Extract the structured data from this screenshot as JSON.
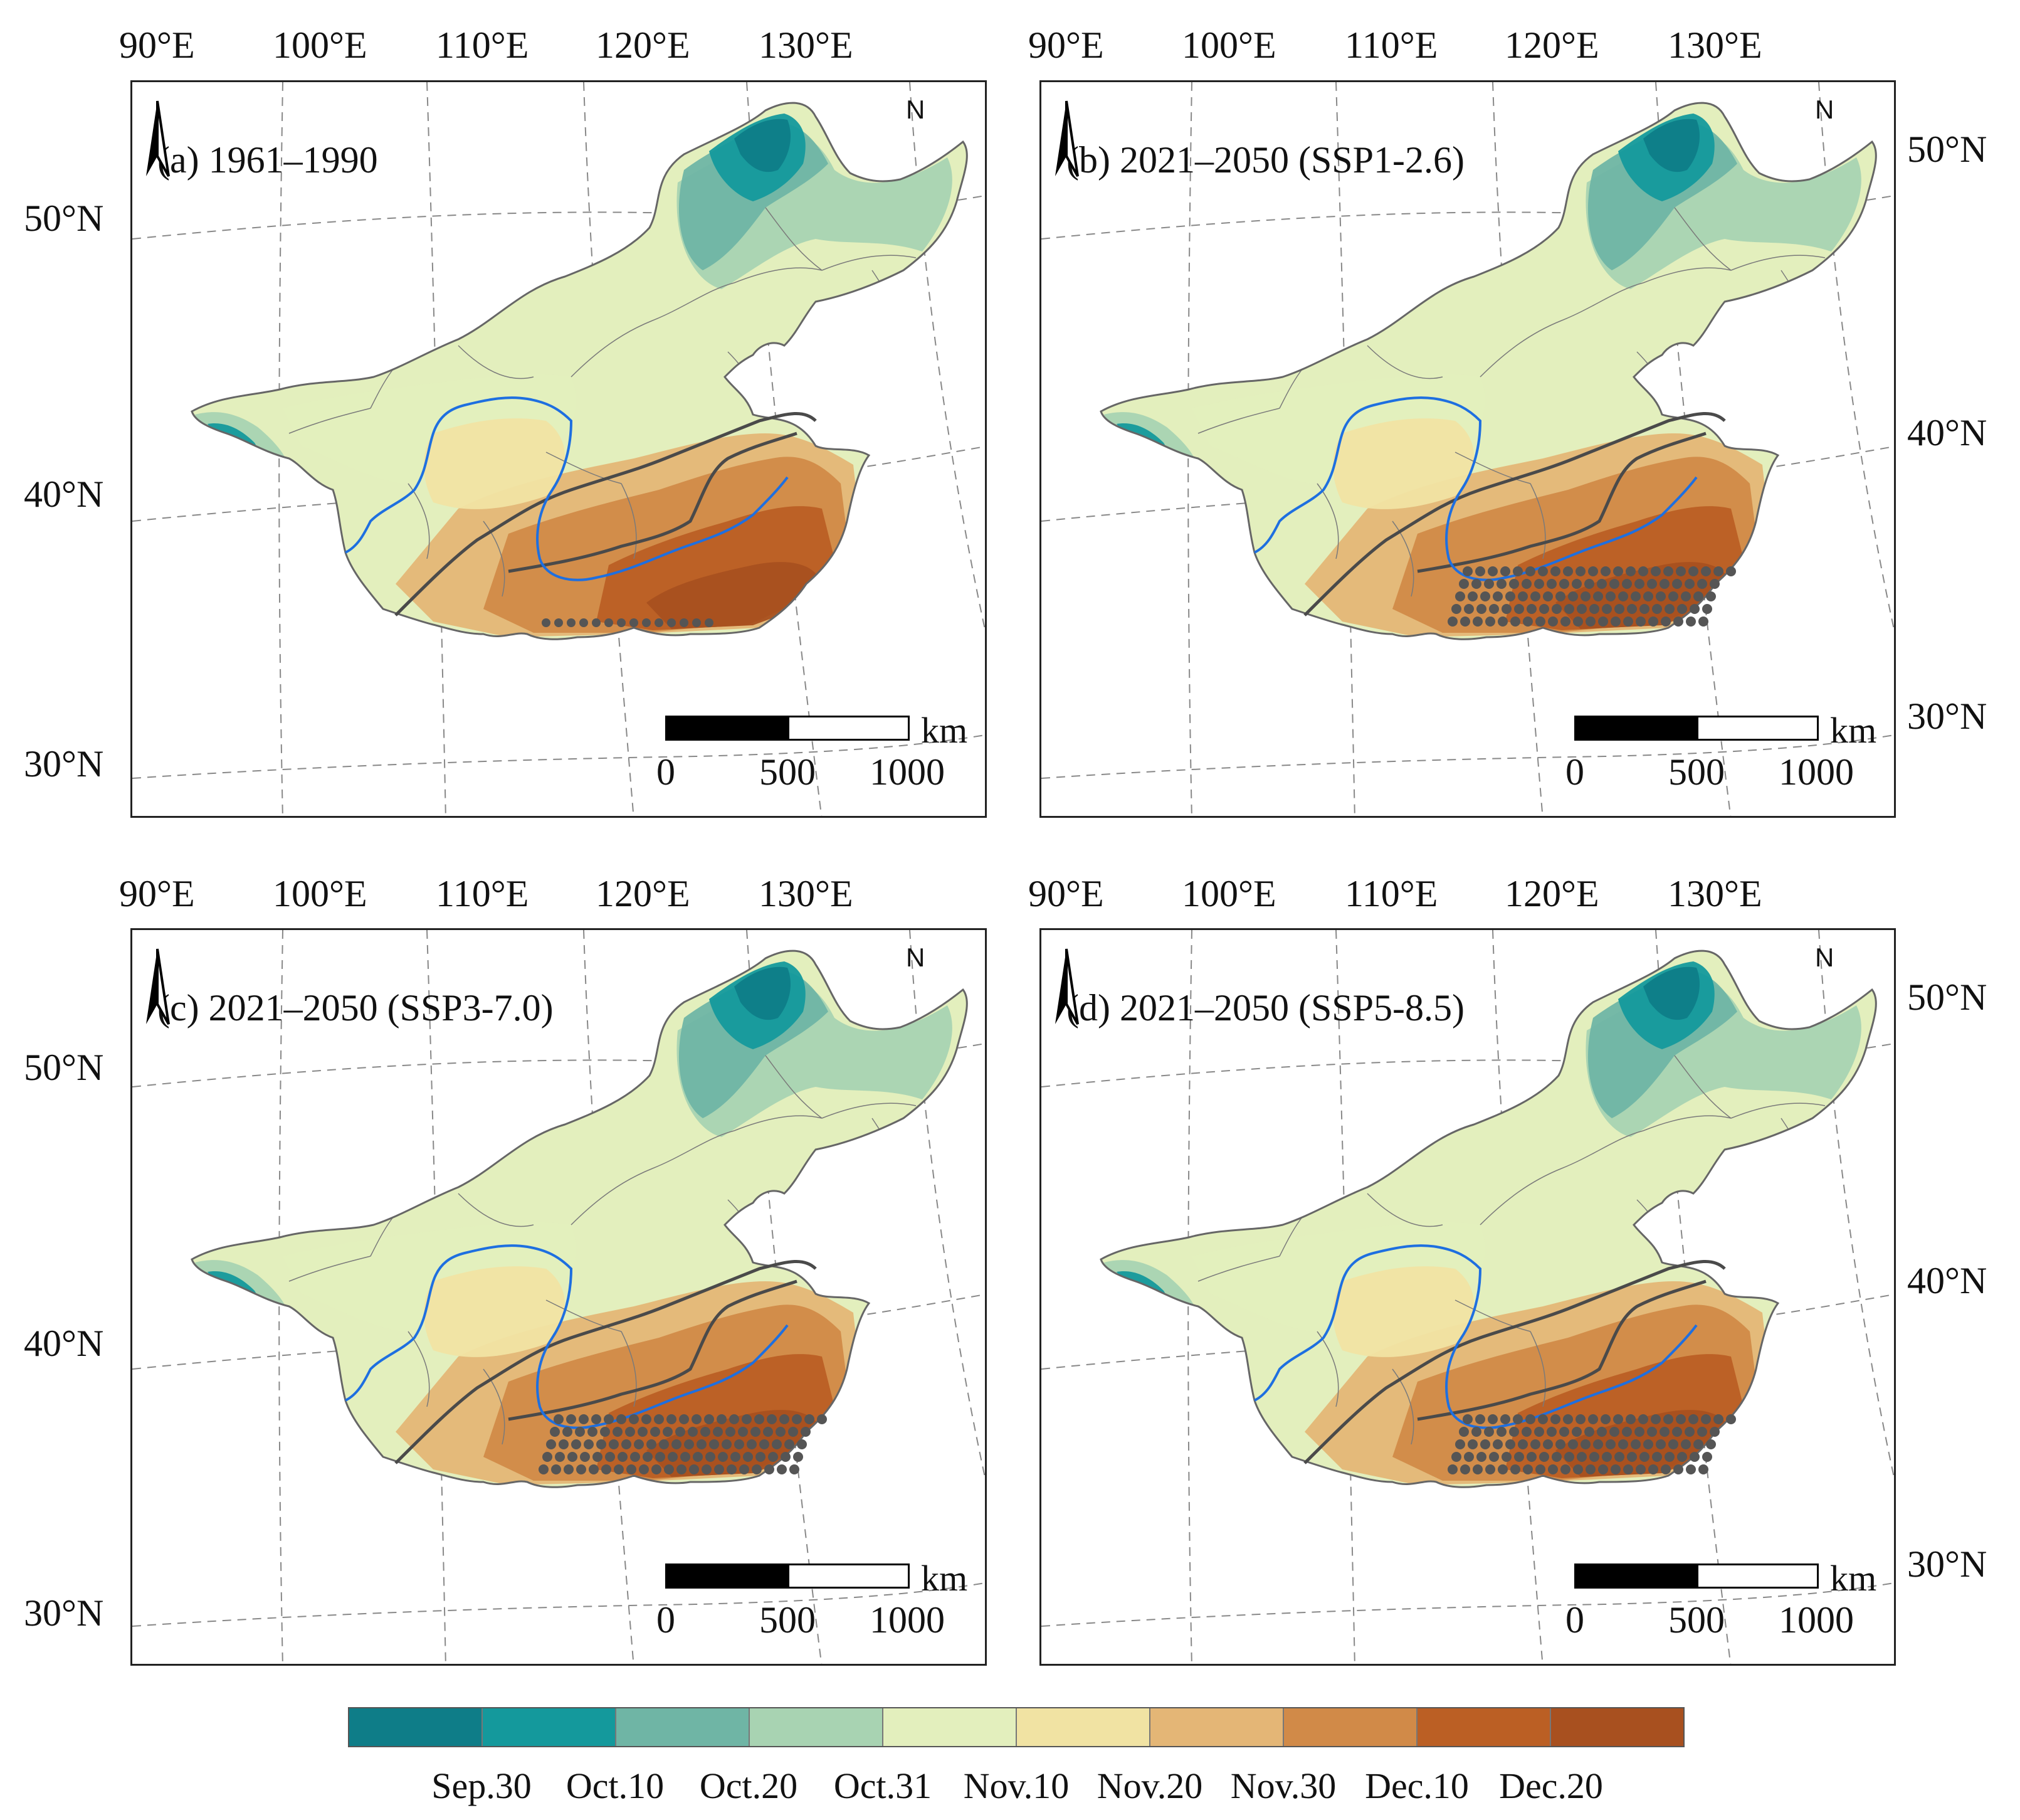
{
  "longitude_labels": [
    "90°E",
    "100°E",
    "110°E",
    "120°E",
    "130°E"
  ],
  "latitude_labels_left": [
    "50°N",
    "40°N",
    "30°N"
  ],
  "latitude_labels_right": [
    "50°N",
    "40°N",
    "30°N"
  ],
  "panels": [
    {
      "id": "a",
      "title": "(a) 1961–1990",
      "dot_region": "small"
    },
    {
      "id": "b",
      "title": "(b) 2021–2050 (SSP1-2.6)",
      "dot_region": "large"
    },
    {
      "id": "c",
      "title": "(c) 2021–2050 (SSP3-7.0)",
      "dot_region": "large"
    },
    {
      "id": "d",
      "title": "(d) 2021–2050 (SSP5-8.5)",
      "dot_region": "large"
    }
  ],
  "north_arrow_label": "N",
  "scale_bar": {
    "unit": "km",
    "ticks": [
      "0",
      "500",
      "1000"
    ]
  },
  "legend": {
    "colors": [
      "#0e7d88",
      "#14999c",
      "#6fb5a5",
      "#a8d3b2",
      "#e3efbd",
      "#f1e3a3",
      "#e4b676",
      "#d18a48",
      "#bb5f24",
      "#a8501f"
    ],
    "labels": [
      "Sep.30",
      "Oct.10",
      "Oct.20",
      "Oct.31",
      "Nov.10",
      "Nov.20",
      "Nov.30",
      "Dec.10",
      "Dec.20"
    ]
  },
  "colors": {
    "river": "#1e6fe0",
    "boundary": "#555555",
    "grid": "#888888",
    "dots": "#555555"
  }
}
